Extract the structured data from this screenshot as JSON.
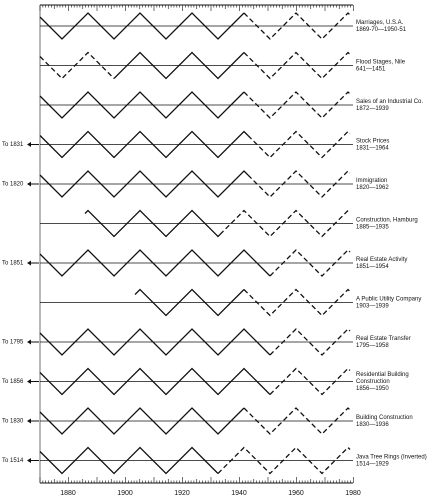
{
  "axis": {
    "ticks": [
      "1880",
      "1900",
      "1920",
      "1940",
      "1960",
      "1980"
    ]
  },
  "rows": [
    {
      "label": [
        "Marriages, U.S.A.",
        "1869-70—1950-51"
      ]
    },
    {
      "label": [
        "Flood Stages, Nile",
        "641—1451"
      ]
    },
    {
      "label": [
        "Sales of an Industrial Co.",
        "1872—1939"
      ]
    },
    {
      "label": [
        "Stock Prices",
        "1831—1964"
      ],
      "left": "To 1831"
    },
    {
      "label": [
        "Immigration",
        "1820—1962"
      ],
      "left": "To 1820"
    },
    {
      "label": [
        "Construction, Hamburg",
        "1885—1935"
      ]
    },
    {
      "label": [
        "Real Estate Activity",
        "1851—1954"
      ],
      "left": "To 1851"
    },
    {
      "label": [
        "A Public Utility Company",
        "1903—1939"
      ]
    },
    {
      "label": [
        "Real Estate Transfer",
        "1795—1958"
      ],
      "left": "To 1795"
    },
    {
      "label": [
        "Residential Building",
        "Construction",
        "1856—1950"
      ],
      "left": "To 1856"
    },
    {
      "label": [
        "Building Construction",
        "1830—1936"
      ],
      "left": "To 1830"
    },
    {
      "label": [
        "Java Tree Rings (Inverted)",
        "1514—1929"
      ],
      "left": "To 1514"
    }
  ]
}
